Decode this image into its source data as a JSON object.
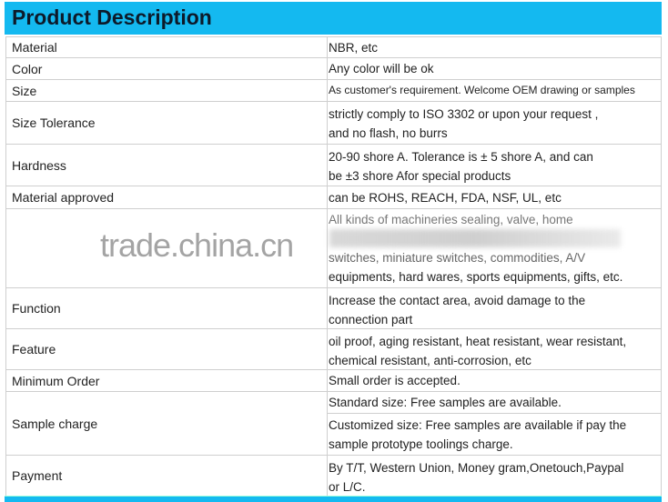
{
  "title": "Product Description",
  "watermark": "trade.china.cn",
  "accent_color": "#14b9f0",
  "rows": [
    {
      "label": "Material",
      "value": "NBR, etc"
    },
    {
      "label": "Color",
      "value": "Any color will be ok"
    },
    {
      "label": "Size",
      "value": "As customer's requirement. Welcome OEM drawing or samples"
    },
    {
      "label": "Size Tolerance",
      "value": " strictly comply to ISO 3302 or upon your request ,",
      "value2": "and no flash, no burrs"
    },
    {
      "label": "Hardness",
      "value": " 20-90 shore A. Tolerance is ± 5 shore A, and can",
      "value2": "be ±3 shore Afor special products"
    },
    {
      "label": "Material approved",
      "value": " can be ROHS, REACH, FDA, NSF, UL, etc"
    },
    {
      "label": "",
      "value": " All kinds of machineries sealing, valve, home",
      "value2": "switches, miniature switches, commodities, A/V",
      "value3": "equipments, hard wares, sports equipments, gifts, etc."
    },
    {
      "label": "Function",
      "value": " Increase the contact area, avoid damage to the",
      "value2": "connection part"
    },
    {
      "label": "Feature",
      "value": " oil proof, aging resistant, heat resistant, wear resistant,",
      "value2": "chemical resistant, anti-corrosion, etc"
    },
    {
      "label": "Minimum Order",
      "value": " Small order is accepted."
    },
    {
      "label": "Sample charge",
      "value": " Standard size: Free samples are available.",
      "value2": " Customized size: Free samples are available if pay the",
      "value3": "sample prototype toolings charge."
    },
    {
      "label": "Payment",
      "value": " By T/T, Western Union, Money gram,Onetouch,Paypal",
      "value2": "or L/C."
    }
  ]
}
